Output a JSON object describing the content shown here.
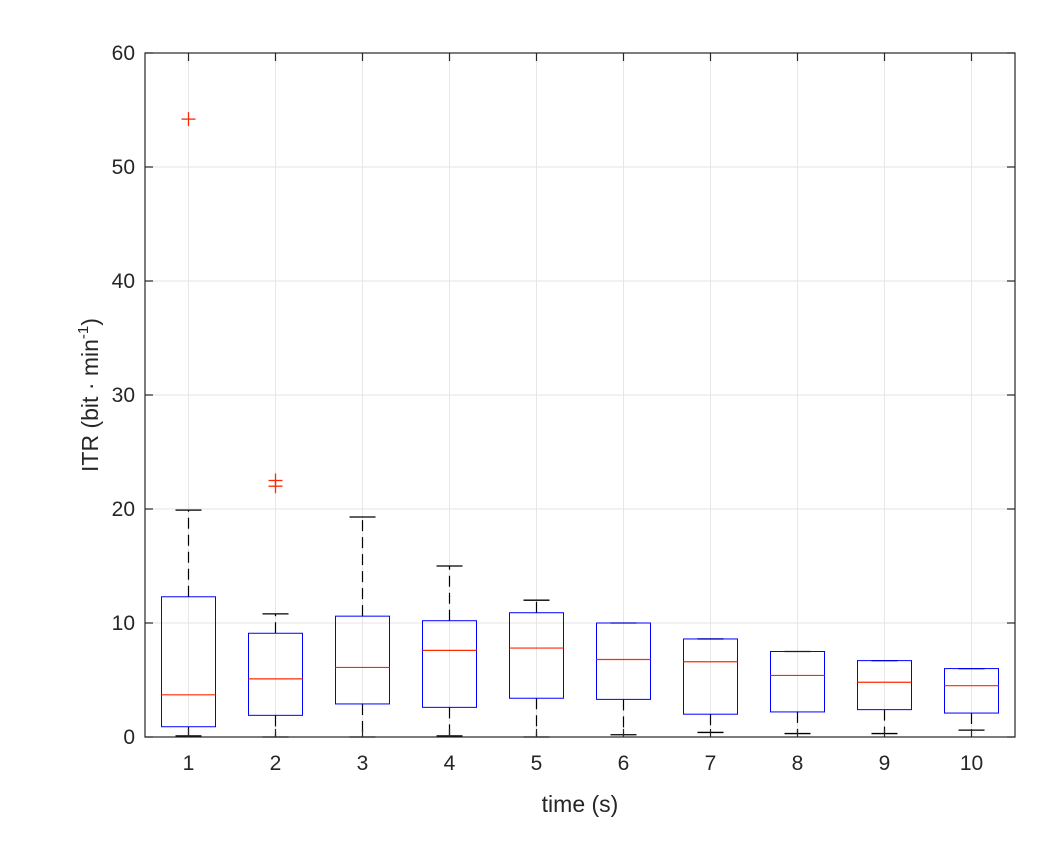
{
  "chart_data": {
    "type": "boxplot",
    "title": "",
    "xlabel": "time (s)",
    "ylabel": "ITR (bit · min",
    "ylabel_superscript": "-1",
    "ylabel_suffix": ")",
    "ylim": [
      0,
      60
    ],
    "yticks": [
      0,
      10,
      20,
      30,
      40,
      50,
      60
    ],
    "grid": true,
    "categories": [
      "1",
      "2",
      "3",
      "4",
      "5",
      "6",
      "7",
      "8",
      "9",
      "10"
    ],
    "boxes": [
      {
        "category": "1",
        "whisker_low": 0.1,
        "q1": 0.9,
        "median": 3.7,
        "q3": 12.3,
        "whisker_high": 19.9,
        "outliers": [
          54.2
        ]
      },
      {
        "category": "2",
        "whisker_low": 0.0,
        "q1": 1.9,
        "median": 5.1,
        "q3": 9.1,
        "whisker_high": 10.8,
        "outliers": [
          22.0,
          22.5
        ]
      },
      {
        "category": "3",
        "whisker_low": 0.0,
        "q1": 2.9,
        "median": 6.1,
        "q3": 10.6,
        "whisker_high": 19.3,
        "outliers": []
      },
      {
        "category": "4",
        "whisker_low": 0.1,
        "q1": 2.6,
        "median": 7.6,
        "q3": 10.2,
        "whisker_high": 15.0,
        "outliers": []
      },
      {
        "category": "5",
        "whisker_low": 0.0,
        "q1": 3.4,
        "median": 7.8,
        "q3": 10.9,
        "whisker_high": 12.0,
        "outliers": []
      },
      {
        "category": "6",
        "whisker_low": 0.2,
        "q1": 3.3,
        "median": 6.8,
        "q3": 10.0,
        "whisker_high": 10.0,
        "outliers": []
      },
      {
        "category": "7",
        "whisker_low": 0.4,
        "q1": 2.0,
        "median": 6.6,
        "q3": 8.6,
        "whisker_high": 8.6,
        "outliers": []
      },
      {
        "category": "8",
        "whisker_low": 0.3,
        "q1": 2.2,
        "median": 5.4,
        "q3": 7.5,
        "whisker_high": 7.5,
        "outliers": []
      },
      {
        "category": "9",
        "whisker_low": 0.3,
        "q1": 2.4,
        "median": 4.8,
        "q3": 6.7,
        "whisker_high": 6.7,
        "outliers": []
      },
      {
        "category": "10",
        "whisker_low": 0.6,
        "q1": 2.1,
        "median": 4.5,
        "q3": 6.0,
        "whisker_high": 6.0,
        "outliers": []
      }
    ],
    "colors": {
      "box": "#0000ff",
      "median": "#ff2a00",
      "outlier": "#ff2a00",
      "whisker": "#000000",
      "grid": "#e6e6e6",
      "axis": "#262626"
    }
  }
}
